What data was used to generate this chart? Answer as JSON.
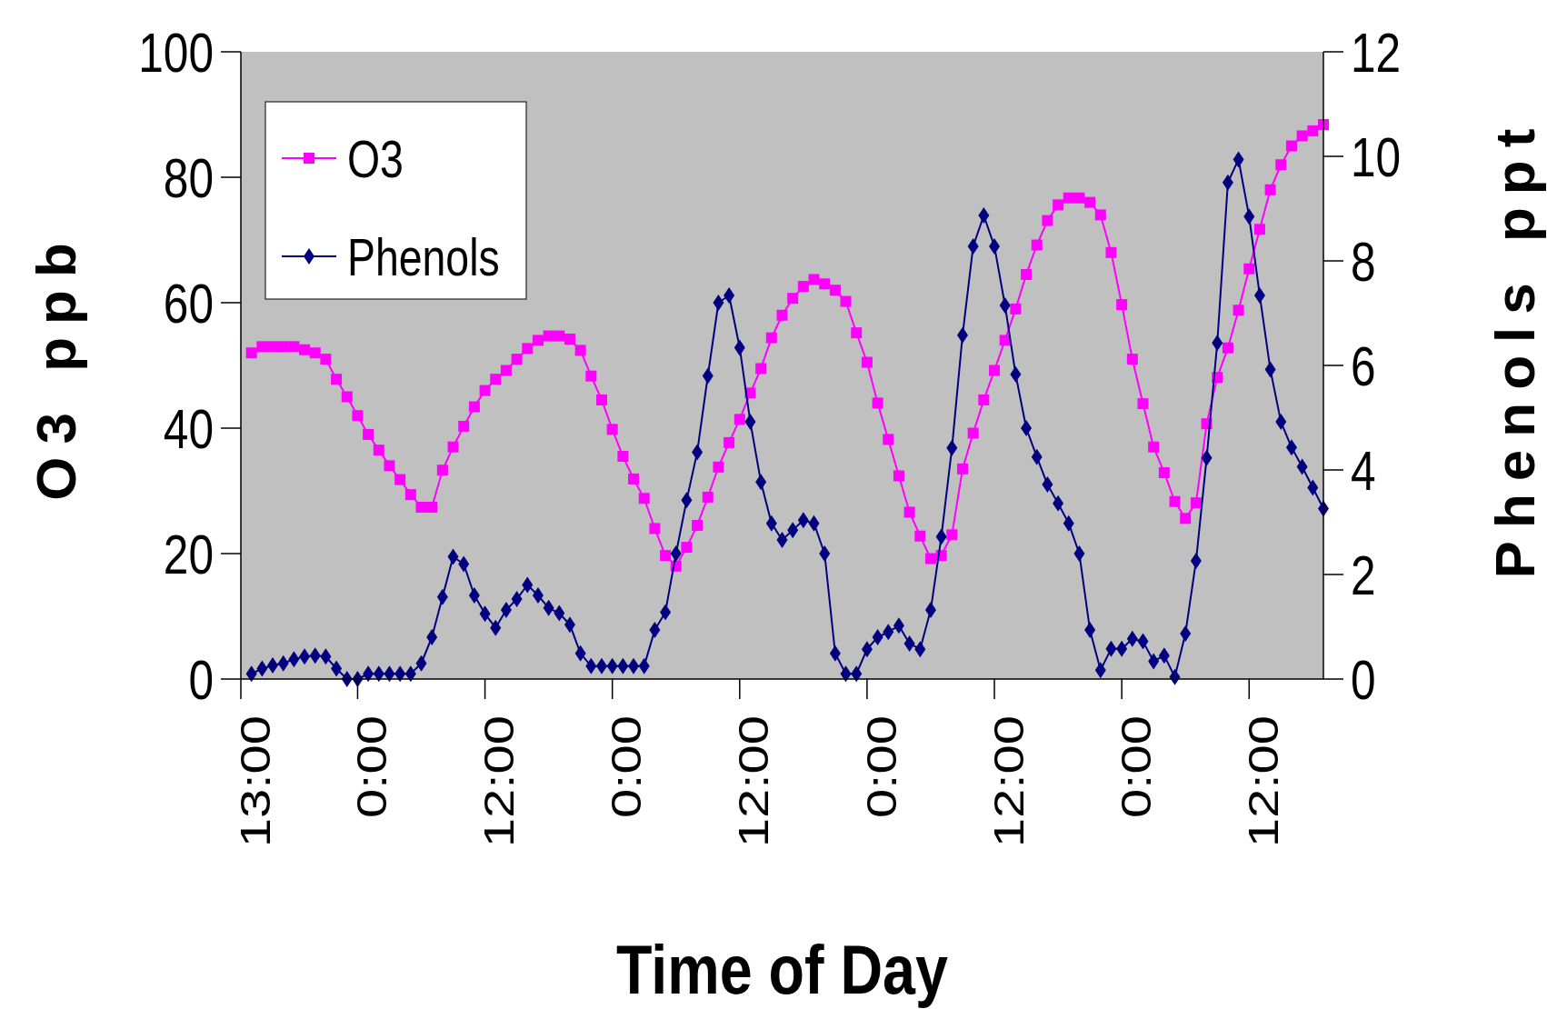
{
  "chart_data": {
    "type": "line",
    "xlabel": "Time of Day",
    "ylabel": "O3 ppb",
    "y2label": "Phenols ppt",
    "categories": [
      "13:00",
      null,
      null,
      null,
      null,
      null,
      null,
      null,
      null,
      null,
      null,
      "0:00",
      null,
      null,
      null,
      null,
      null,
      null,
      null,
      null,
      null,
      null,
      null,
      "12:00",
      null,
      null,
      null,
      null,
      null,
      null,
      null,
      null,
      null,
      null,
      null,
      "0:00",
      null,
      null,
      null,
      null,
      null,
      null,
      null,
      null,
      null,
      null,
      null,
      "12:00",
      null,
      null,
      null,
      null,
      null,
      null,
      null,
      null,
      null,
      null,
      null,
      "0:00",
      null,
      null,
      null,
      null,
      null,
      null,
      null,
      null,
      null,
      null,
      null,
      "12:00",
      null,
      null,
      null,
      null,
      null,
      null,
      null,
      null,
      null,
      null,
      null,
      "0:00",
      null,
      null,
      null,
      null,
      null,
      null,
      null,
      null,
      null,
      null,
      null,
      "12:00",
      null,
      null,
      null,
      null,
      null,
      null
    ],
    "series": [
      {
        "name": "O3",
        "color": "#ff00ff",
        "marker": "square",
        "values": [
          52,
          53,
          53,
          53,
          53,
          52.5,
          52,
          51,
          47.8,
          45,
          42,
          39,
          36.5,
          34,
          31.8,
          29.4,
          27.4,
          27.4,
          33.3,
          37,
          40.3,
          43.4,
          46,
          47.8,
          49.2,
          51,
          52.7,
          54,
          54.7,
          54.7,
          54.2,
          52.4,
          48.3,
          44.5,
          39.8,
          35.5,
          31.9,
          28.8,
          24,
          19.7,
          18,
          21,
          24.5,
          29,
          33.8,
          37.7,
          41.4,
          45.6,
          49.5,
          54.4,
          58,
          60.7,
          62.6,
          63.7,
          63,
          62,
          60.2,
          55.2,
          50.5,
          44,
          38.2,
          32.4,
          26.6,
          22.8,
          19.2,
          19.7,
          23,
          33.5,
          39.2,
          44.5,
          49.2,
          54,
          59,
          64.5,
          69.2,
          73.1,
          75.6,
          76.7,
          76.7,
          76,
          74,
          68,
          59.7,
          51,
          43.9,
          37,
          32.9,
          28.3,
          25.6,
          28.1,
          40.7,
          48.1,
          52.8,
          58.8,
          65.4,
          71.7,
          78,
          82,
          85,
          86.6,
          87.4,
          88.4
        ]
      },
      {
        "name": "Phenols",
        "color": "#000080",
        "marker": "diamond",
        "axis": "y2",
        "values": [
          0.1,
          0.2,
          0.26,
          0.3,
          0.38,
          0.43,
          0.45,
          0.43,
          0.2,
          0,
          0,
          0.1,
          0.1,
          0.1,
          0.1,
          0.1,
          0.3,
          0.8,
          1.57,
          2.34,
          2.2,
          1.6,
          1.25,
          0.98,
          1.32,
          1.53,
          1.8,
          1.6,
          1.36,
          1.26,
          1.04,
          0.49,
          0.25,
          0.25,
          0.25,
          0.25,
          0.25,
          0.25,
          0.94,
          1.28,
          2.4,
          3.42,
          4.34,
          5.8,
          7.2,
          7.34,
          6.34,
          4.92,
          3.77,
          2.98,
          2.66,
          2.85,
          3.04,
          2.98,
          2.4,
          0.49,
          0.1,
          0.1,
          0.57,
          0.8,
          0.9,
          1.02,
          0.68,
          0.57,
          1.32,
          2.72,
          4.42,
          6.58,
          8.28,
          8.87,
          8.28,
          7.15,
          5.83,
          4.8,
          4.25,
          3.72,
          3.36,
          2.98,
          2.4,
          0.94,
          0.17,
          0.58,
          0.58,
          0.77,
          0.72,
          0.34,
          0.45,
          0.04,
          0.87,
          2.26,
          4.23,
          6.43,
          9.5,
          9.94,
          8.85,
          7.34,
          5.92,
          4.92,
          4.43,
          4.06,
          3.66,
          3.26
        ]
      }
    ],
    "ylim": [
      0,
      100
    ],
    "yticks": [
      0,
      20,
      40,
      60,
      80,
      100
    ],
    "y2lim": [
      0,
      12
    ],
    "y2ticks": [
      0,
      2,
      4,
      6,
      8,
      10,
      12
    ],
    "legend": "top left"
  }
}
